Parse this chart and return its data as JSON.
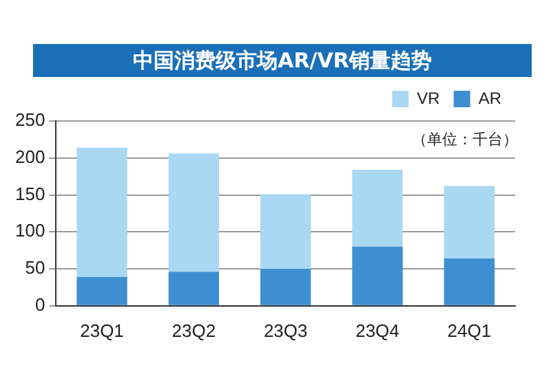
{
  "chart_data": {
    "type": "bar",
    "title": "中国消费级市场AR/VR销量趋势",
    "categories": [
      "23Q1",
      "23Q2",
      "23Q3",
      "23Q4",
      "24Q1"
    ],
    "series": [
      {
        "name": "AR",
        "color": "#3d8fd1",
        "values": [
          39,
          46,
          50,
          80,
          64
        ]
      },
      {
        "name": "VR",
        "color": "#a9d8f2",
        "values": [
          175,
          160,
          101,
          104,
          98
        ]
      }
    ],
    "stacked": true,
    "ylim": [
      0,
      250
    ],
    "yticks": [
      0,
      50,
      100,
      150,
      200,
      250
    ],
    "grid": "y",
    "legend": "top right",
    "annotations": [
      "（单位：千台）"
    ]
  }
}
